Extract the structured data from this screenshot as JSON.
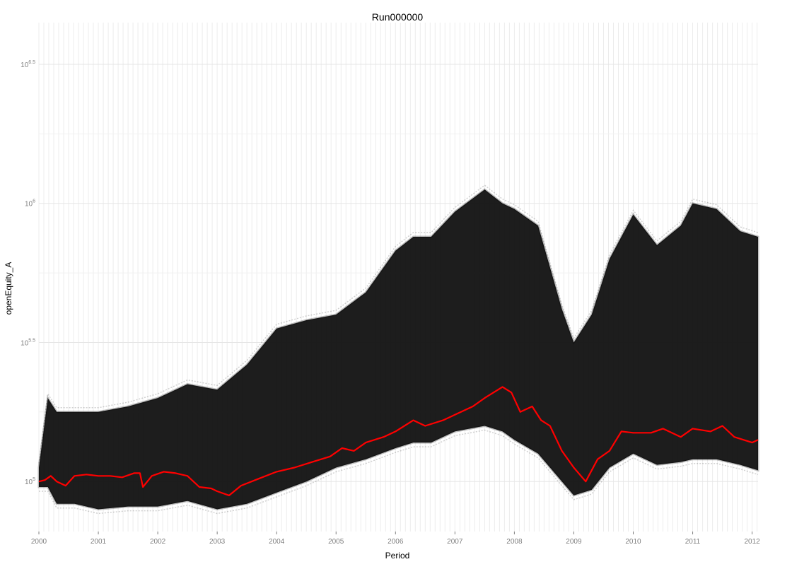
{
  "chart_data": {
    "type": "line",
    "title": "Run000000",
    "xlabel": "Period",
    "ylabel": "openEquity_A",
    "x_scale": "time",
    "y_scale": "log10",
    "xlim": [
      2000.0,
      2012.1
    ],
    "ylim_log10": [
      4.82,
      6.65
    ],
    "x_ticks": [
      "2000",
      "2001",
      "2002",
      "2003",
      "2004",
      "2005",
      "2006",
      "2007",
      "2008",
      "2009",
      "2010",
      "2011",
      "2012"
    ],
    "y_ticks": [
      {
        "base": "10",
        "exp": "5"
      },
      {
        "base": "10",
        "exp": "5.5"
      },
      {
        "base": "10",
        "exp": "6"
      },
      {
        "base": "10",
        "exp": "6.5"
      }
    ],
    "grid": true,
    "legend": "none",
    "colors": {
      "simulations": "#000000",
      "highlight": "#ff0000",
      "grid_major": "#e5e5e5",
      "grid_minor": "#f1f1f1",
      "vertical_grid": "#ececec"
    },
    "series": [
      {
        "role": "simulation-envelope",
        "x": [
          2000.0,
          2000.15,
          2000.3,
          2000.6,
          2001.0,
          2001.5,
          2002.0,
          2002.5,
          2003.0,
          2003.5,
          2004.0,
          2004.5,
          2005.0,
          2005.5,
          2006.0,
          2006.3,
          2006.6,
          2007.0,
          2007.5,
          2007.8,
          2008.0,
          2008.4,
          2008.8,
          2009.0,
          2009.3,
          2009.6,
          2010.0,
          2010.4,
          2010.8,
          2011.0,
          2011.4,
          2011.8,
          2012.1
        ],
        "y_log10_upper": [
          5.05,
          5.3,
          5.25,
          5.25,
          5.25,
          5.27,
          5.3,
          5.35,
          5.33,
          5.42,
          5.55,
          5.58,
          5.6,
          5.68,
          5.83,
          5.88,
          5.88,
          5.97,
          6.05,
          6.0,
          5.98,
          5.92,
          5.62,
          5.5,
          5.6,
          5.8,
          5.96,
          5.85,
          5.92,
          6.0,
          5.98,
          5.9,
          5.88
        ],
        "y_log10_lower": [
          4.98,
          4.98,
          4.92,
          4.92,
          4.9,
          4.91,
          4.91,
          4.93,
          4.9,
          4.92,
          4.96,
          5.0,
          5.05,
          5.08,
          5.12,
          5.14,
          5.14,
          5.18,
          5.2,
          5.18,
          5.15,
          5.1,
          5.0,
          4.95,
          4.97,
          5.05,
          5.1,
          5.06,
          5.07,
          5.08,
          5.08,
          5.06,
          5.04
        ]
      },
      {
        "role": "highlight",
        "x": [
          2000.0,
          2000.1,
          2000.2,
          2000.3,
          2000.45,
          2000.6,
          2000.8,
          2001.0,
          2001.2,
          2001.4,
          2001.6,
          2001.7,
          2001.75,
          2001.9,
          2002.1,
          2002.3,
          2002.5,
          2002.7,
          2002.9,
          2003.0,
          2003.2,
          2003.4,
          2003.7,
          2004.0,
          2004.3,
          2004.6,
          2004.9,
          2005.1,
          2005.3,
          2005.5,
          2005.8,
          2006.0,
          2006.3,
          2006.5,
          2006.8,
          2007.0,
          2007.3,
          2007.5,
          2007.8,
          2007.95,
          2008.1,
          2008.3,
          2008.45,
          2008.6,
          2008.8,
          2009.0,
          2009.2,
          2009.4,
          2009.6,
          2009.8,
          2010.0,
          2010.3,
          2010.5,
          2010.8,
          2011.0,
          2011.3,
          2011.5,
          2011.7,
          2012.0,
          2012.1
        ],
        "y_log10": [
          5.0,
          5.005,
          5.02,
          5.0,
          4.985,
          5.02,
          5.025,
          5.02,
          5.02,
          5.015,
          5.03,
          5.03,
          4.98,
          5.02,
          5.035,
          5.03,
          5.02,
          4.98,
          4.975,
          4.965,
          4.95,
          4.985,
          5.01,
          5.035,
          5.05,
          5.07,
          5.09,
          5.12,
          5.11,
          5.14,
          5.16,
          5.18,
          5.22,
          5.2,
          5.22,
          5.24,
          5.27,
          5.3,
          5.34,
          5.32,
          5.25,
          5.27,
          5.22,
          5.2,
          5.11,
          5.05,
          5.0,
          5.08,
          5.11,
          5.18,
          5.175,
          5.175,
          5.19,
          5.16,
          5.19,
          5.18,
          5.2,
          5.16,
          5.14,
          5.15
        ]
      }
    ]
  }
}
